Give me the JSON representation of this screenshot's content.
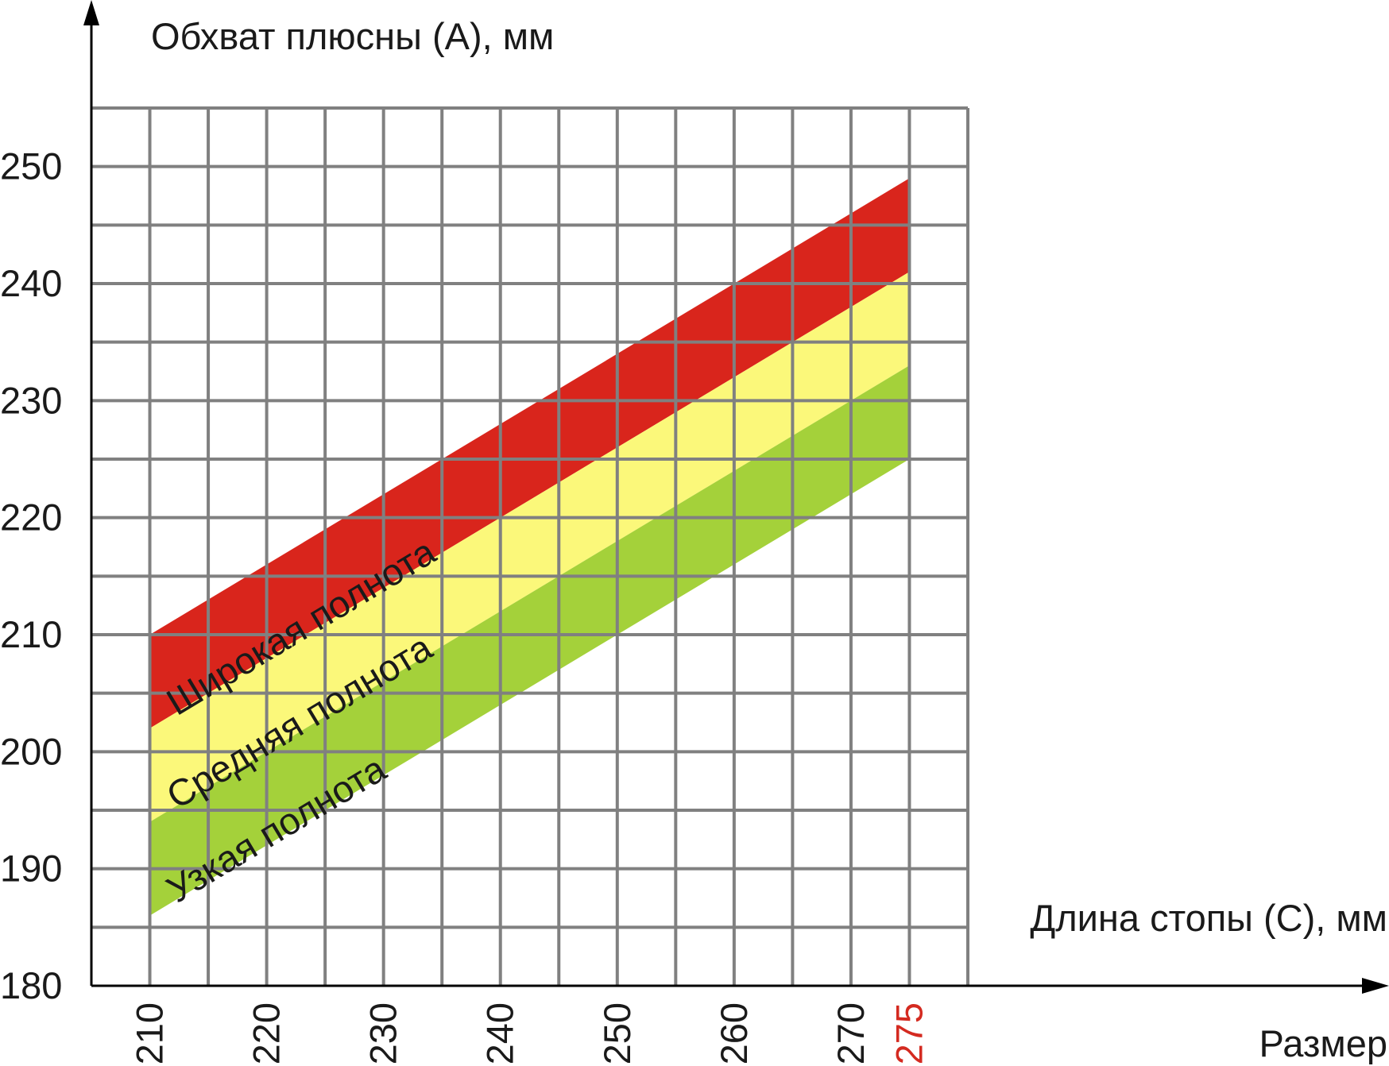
{
  "chart_data": {
    "type": "band",
    "y_label": "Обхват плюсны (А), мм",
    "x_label": "Длина стопы (С), мм",
    "x_sub_label": "Размер",
    "x": [
      210,
      275
    ],
    "series": [
      {
        "name": "Широкая полнота",
        "color": "#d9251c",
        "upper": [
          210,
          249
        ],
        "lower": [
          202,
          241
        ]
      },
      {
        "name": "Средняя полнота",
        "color": "#fbf87a",
        "upper": [
          202,
          241
        ],
        "lower": [
          194,
          233
        ]
      },
      {
        "name": "Узкая полнота",
        "color": "#a4d13a",
        "upper": [
          194,
          233
        ],
        "lower": [
          186,
          225
        ]
      }
    ],
    "xlim": [
      205,
      280
    ],
    "ylim": [
      180,
      255
    ],
    "xticks": [
      210,
      220,
      230,
      240,
      250,
      260,
      270,
      275
    ],
    "yticks": [
      180,
      190,
      200,
      210,
      220,
      230,
      240,
      250
    ],
    "highlight_xtick": 275,
    "highlight_color": "#d42a20",
    "grid": true,
    "grid_color": "#808080",
    "xgrid": [
      210,
      215,
      220,
      225,
      230,
      235,
      240,
      245,
      250,
      255,
      260,
      265,
      270,
      275,
      280
    ],
    "ygrid": [
      185,
      190,
      195,
      200,
      205,
      210,
      215,
      220,
      225,
      230,
      235,
      240,
      245,
      250,
      255
    ]
  }
}
